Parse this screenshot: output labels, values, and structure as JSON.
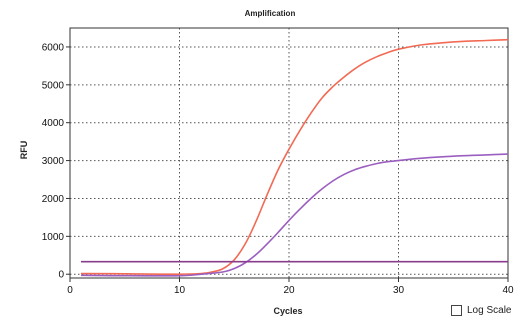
{
  "chart_data": {
    "type": "line",
    "title": "Amplification",
    "xlabel": "Cycles",
    "ylabel": "RFU",
    "xlim": [
      0,
      40
    ],
    "ylim": [
      -100,
      6500
    ],
    "x_ticks": [
      0,
      10,
      20,
      30,
      40
    ],
    "y_ticks": [
      0,
      1000,
      2000,
      3000,
      4000,
      5000,
      6000
    ],
    "grid": true,
    "series": [
      {
        "color": "#f26a54",
        "x": [
          1,
          5,
          10,
          12,
          13,
          14,
          15,
          16,
          17,
          18,
          19,
          20,
          21,
          22,
          23,
          24,
          25,
          26,
          27,
          28,
          29,
          30,
          32,
          34,
          36,
          38,
          40
        ],
        "y": [
          20,
          10,
          0,
          20,
          60,
          150,
          380,
          800,
          1400,
          2100,
          2750,
          3300,
          3800,
          4250,
          4650,
          4950,
          5200,
          5420,
          5600,
          5740,
          5850,
          5940,
          6050,
          6110,
          6150,
          6170,
          6190
        ]
      },
      {
        "color": "#9b5fc0",
        "x": [
          1,
          5,
          10,
          12,
          14,
          15,
          16,
          17,
          18,
          19,
          20,
          21,
          22,
          23,
          24,
          25,
          26,
          27,
          28,
          29,
          30,
          32,
          34,
          36,
          38,
          40
        ],
        "y": [
          -30,
          -40,
          -40,
          0,
          60,
          150,
          300,
          520,
          800,
          1100,
          1420,
          1720,
          2000,
          2250,
          2460,
          2630,
          2760,
          2850,
          2920,
          2970,
          3000,
          3060,
          3100,
          3130,
          3150,
          3170
        ]
      },
      {
        "color": "#8a3c8c",
        "x": [
          1,
          40
        ],
        "y": [
          330,
          330
        ]
      }
    ]
  },
  "controls": {
    "log_scale_label": "Log Scale",
    "log_scale_checked": false
  }
}
